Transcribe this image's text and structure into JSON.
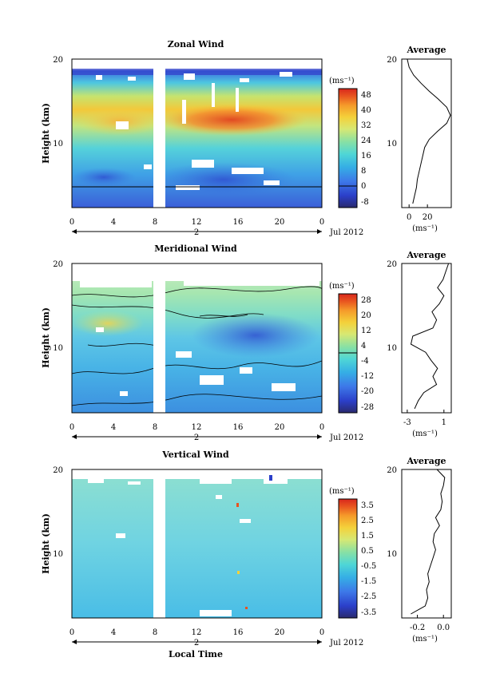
{
  "chart_data": [
    {
      "type": "heatmap",
      "title": "Zonal Wind",
      "ylabel": "Height (km)",
      "y_ticks": [
        "20",
        "10"
      ],
      "x_ticks": [
        "0",
        "4",
        "8",
        "12",
        "16",
        "20",
        "0"
      ],
      "day_label": "2",
      "month_label": "Jul 2012",
      "unit_label": "(ms⁻¹)",
      "colorbar_ticks": [
        "48",
        "40",
        "32",
        "24",
        "16",
        "8",
        "0",
        "-8"
      ],
      "colorbar_range": [
        -12,
        52
      ],
      "xlim": [
        0,
        24
      ],
      "ylim": [
        1.5,
        20
      ],
      "data_gap_hours": [
        8.8,
        9.9
      ],
      "profile": {
        "title": "Average",
        "x_ticks": [
          "0",
          "20"
        ],
        "tick_values": [
          0,
          20
        ],
        "xlim": [
          -8,
          46
        ],
        "x_unit": "(ms⁻¹)",
        "y_ticks": [
          "20",
          "10"
        ],
        "heights": [
          2,
          3,
          4,
          5,
          6,
          7,
          8,
          9,
          10,
          11,
          12,
          13,
          14,
          15,
          16,
          17,
          18,
          19,
          20
        ],
        "values": [
          4,
          6,
          8,
          9,
          11,
          13,
          15,
          17,
          22,
          31,
          41,
          45,
          41,
          32,
          22,
          13,
          5,
          0,
          -2
        ]
      }
    },
    {
      "type": "heatmap",
      "title": "Meridional Wind",
      "ylabel": "Height (km)",
      "y_ticks": [
        "20",
        "10"
      ],
      "x_ticks": [
        "0",
        "4",
        "8",
        "12",
        "16",
        "20",
        "0"
      ],
      "day_label": "2",
      "month_label": "Jul 2012",
      "unit_label": "(ms⁻¹)",
      "colorbar_ticks": [
        "28",
        "20",
        "12",
        "4",
        "-4",
        "-12",
        "-20",
        "-28"
      ],
      "colorbar_range": [
        -32,
        32
      ],
      "xlim": [
        0,
        24
      ],
      "ylim": [
        1.5,
        20
      ],
      "data_gap_hours": [
        8.8,
        9.9
      ],
      "profile": {
        "title": "Average",
        "x_ticks": [
          "-3",
          "1"
        ],
        "tick_values": [
          -3,
          1
        ],
        "xlim": [
          -3.6,
          1.8
        ],
        "x_unit": "(ms⁻¹)",
        "y_ticks": [
          "20",
          "10"
        ],
        "heights": [
          2,
          3,
          4,
          5,
          6,
          7,
          8,
          9,
          10,
          11,
          12,
          13,
          14,
          15,
          16,
          17,
          18,
          19,
          20
        ],
        "values": [
          -2.2,
          -1.8,
          -1.2,
          0.2,
          -0.2,
          0.3,
          -0.4,
          -1.0,
          -2.6,
          -2.4,
          -0.2,
          0.2,
          -0.3,
          0.5,
          1.0,
          0.3,
          0.9,
          1.2,
          1.5
        ]
      }
    },
    {
      "type": "heatmap",
      "title": "Vertical Wind",
      "ylabel": "Height (km)",
      "xlabel": "Local Time",
      "y_ticks": [
        "20",
        "10"
      ],
      "x_ticks": [
        "0",
        "4",
        "8",
        "12",
        "16",
        "20",
        "0"
      ],
      "day_label": "2",
      "month_label": "Jul 2012",
      "unit_label": "(ms⁻¹)",
      "colorbar_ticks": [
        "3.5",
        "2.5",
        "1.5",
        "0.5",
        "-0.5",
        "-1.5",
        "-2.5",
        "-3.5"
      ],
      "colorbar_range": [
        -4,
        4
      ],
      "xlim": [
        0,
        24
      ],
      "ylim": [
        1.5,
        20
      ],
      "data_gap_hours": [
        8.8,
        9.9
      ],
      "profile": {
        "title": "Average",
        "x_ticks": [
          "-0.2",
          "0.0"
        ],
        "tick_values": [
          -0.2,
          0.0
        ],
        "xlim": [
          -0.32,
          0.06
        ],
        "x_unit": "(ms⁻¹)",
        "y_ticks": [
          "20",
          "10"
        ],
        "heights": [
          2,
          3,
          4,
          5,
          6,
          7,
          8,
          9,
          10,
          11,
          12,
          13,
          14,
          15,
          16,
          17,
          18,
          19,
          20
        ],
        "values": [
          -0.25,
          -0.14,
          -0.12,
          -0.13,
          -0.11,
          -0.12,
          -0.1,
          -0.08,
          -0.06,
          -0.08,
          -0.07,
          -0.03,
          -0.06,
          -0.02,
          -0.01,
          -0.02,
          0.0,
          0.01,
          -0.05
        ]
      }
    }
  ]
}
